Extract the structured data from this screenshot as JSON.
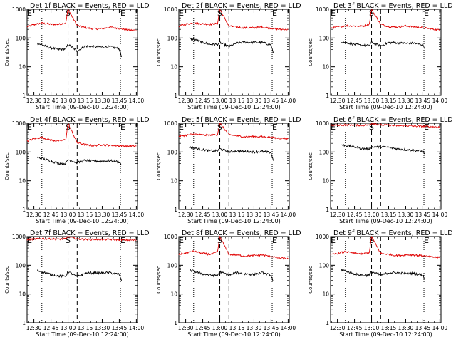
{
  "figure": {
    "colors": {
      "events": "#000000",
      "lld": "#e00000",
      "axes": "#000000"
    }
  },
  "chart_data": [
    {
      "type": "line",
      "title": "Det 1f BLACK = Events, RED = LLD",
      "xlabel": "Start Time (09-Dec-10 12:24:00)",
      "ylabel": "Counts/sec",
      "y_scale": "log",
      "ylim": [
        1,
        1000
      ],
      "yticks": [
        "1",
        "10",
        "100",
        "1000"
      ],
      "xlim": [
        "12:24",
        "14:01"
      ],
      "xticks": [
        "12:30",
        "12:45",
        "13:00",
        "13:15",
        "13:30",
        "13:45",
        "14:00"
      ],
      "markers": [
        {
          "label": "E",
          "time": "12:24"
        },
        {
          "label": "S",
          "time": "13:00"
        },
        {
          "label": "E",
          "time": "13:46"
        }
      ],
      "dotted_lines": [
        "12:37",
        "13:46"
      ],
      "dashed_lines": [
        "13:00",
        "13:08"
      ],
      "series": [
        {
          "key": "lld",
          "x": [
            "12:24",
            "12:30",
            "12:37",
            "12:45",
            "12:52",
            "12:58",
            "13:00",
            "13:08",
            "13:15",
            "13:22",
            "13:30",
            "13:37",
            "13:45",
            "13:52",
            "14:00"
          ],
          "y": [
            250,
            290,
            330,
            300,
            300,
            330,
            1000,
            270,
            230,
            210,
            210,
            240,
            215,
            190,
            185
          ]
        },
        {
          "key": "events",
          "x": [
            "12:33",
            "12:37",
            "12:45",
            "12:52",
            "12:58",
            "13:00",
            "13:08",
            "13:15",
            "13:22",
            "13:30",
            "13:37",
            "13:45",
            "13:47"
          ],
          "y": [
            65,
            58,
            45,
            40,
            42,
            60,
            35,
            52,
            50,
            48,
            50,
            42,
            22
          ]
        }
      ]
    },
    {
      "type": "line",
      "title": "Det 2f BLACK = Events, RED = LLD",
      "xlabel": "Start Time (09-Dec-10 12:24:00)",
      "ylabel": "Counts/sec",
      "y_scale": "log",
      "ylim": [
        1,
        1000
      ],
      "yticks": [
        "1",
        "10",
        "100",
        "1000"
      ],
      "xlim": [
        "12:24",
        "14:01"
      ],
      "xticks": [
        "12:30",
        "12:45",
        "13:00",
        "13:15",
        "13:30",
        "13:45",
        "14:00"
      ],
      "markers": [
        {
          "label": "E",
          "time": "12:24"
        },
        {
          "label": "S",
          "time": "13:00"
        },
        {
          "label": "E",
          "time": "13:46"
        }
      ],
      "dotted_lines": [
        "12:37",
        "13:46"
      ],
      "dashed_lines": [
        "13:00",
        "13:08"
      ],
      "series": [
        {
          "key": "lld",
          "x": [
            "12:24",
            "12:30",
            "12:37",
            "12:45",
            "12:52",
            "12:58",
            "13:00",
            "13:08",
            "13:15",
            "13:22",
            "13:30",
            "13:37",
            "13:45",
            "13:52",
            "14:00"
          ],
          "y": [
            260,
            300,
            330,
            310,
            300,
            320,
            1000,
            260,
            240,
            225,
            230,
            240,
            220,
            200,
            200
          ]
        },
        {
          "key": "events",
          "x": [
            "12:33",
            "12:37",
            "12:45",
            "12:52",
            "12:58",
            "13:00",
            "13:08",
            "13:15",
            "13:22",
            "13:30",
            "13:37",
            "13:45",
            "13:47"
          ],
          "y": [
            95,
            90,
            70,
            60,
            60,
            70,
            50,
            68,
            72,
            70,
            70,
            58,
            30
          ]
        }
      ]
    },
    {
      "type": "line",
      "title": "Det 3f BLACK = Events, RED = LLD",
      "xlabel": "Start Time (09-Dec-10 12:24:00)",
      "ylabel": "Counts/sec",
      "y_scale": "log",
      "ylim": [
        1,
        1000
      ],
      "yticks": [
        "1",
        "10",
        "100",
        "1000"
      ],
      "xlim": [
        "12:24",
        "14:01"
      ],
      "xticks": [
        "12:30",
        "12:45",
        "13:00",
        "13:15",
        "13:30",
        "13:45",
        "14:00"
      ],
      "markers": [
        {
          "label": "E",
          "time": "12:24"
        },
        {
          "label": "S",
          "time": "13:00"
        },
        {
          "label": "E",
          "time": "13:46"
        }
      ],
      "dotted_lines": [
        "12:37",
        "13:46"
      ],
      "dashed_lines": [
        "13:00",
        "13:08"
      ],
      "series": [
        {
          "key": "lld",
          "x": [
            "12:24",
            "12:30",
            "12:37",
            "12:45",
            "12:52",
            "12:58",
            "13:00",
            "13:08",
            "13:15",
            "13:22",
            "13:30",
            "13:37",
            "13:45",
            "13:52",
            "14:00"
          ],
          "y": [
            220,
            240,
            270,
            260,
            255,
            300,
            1000,
            300,
            250,
            240,
            260,
            245,
            230,
            205,
            190
          ]
        },
        {
          "key": "events",
          "x": [
            "12:33",
            "12:37",
            "12:45",
            "12:52",
            "12:58",
            "13:00",
            "13:08",
            "13:15",
            "13:22",
            "13:30",
            "13:37",
            "13:45",
            "13:47"
          ],
          "y": [
            75,
            70,
            60,
            55,
            55,
            70,
            52,
            70,
            68,
            65,
            66,
            58,
            45
          ]
        }
      ]
    },
    {
      "type": "line",
      "title": "Det 4f BLACK = Events, RED = LLD",
      "xlabel": "Start Time (09-Dec-10 12:24:00)",
      "ylabel": "Counts/sec",
      "y_scale": "log",
      "ylim": [
        1,
        1000
      ],
      "yticks": [
        "1",
        "10",
        "100",
        "1000"
      ],
      "xlim": [
        "12:24",
        "14:01"
      ],
      "xticks": [
        "12:30",
        "12:45",
        "13:00",
        "13:15",
        "13:30",
        "13:45",
        "14:00"
      ],
      "markers": [
        {
          "label": "E",
          "time": "12:24"
        },
        {
          "label": "S",
          "time": "13:00"
        },
        {
          "label": "E",
          "time": "13:46"
        }
      ],
      "dotted_lines": [
        "12:37",
        "13:46"
      ],
      "dashed_lines": [
        "13:00",
        "13:08"
      ],
      "series": [
        {
          "key": "lld",
          "x": [
            "12:24",
            "12:30",
            "12:37",
            "12:45",
            "12:52",
            "12:58",
            "13:00",
            "13:08",
            "13:15",
            "13:22",
            "13:30",
            "13:37",
            "13:45",
            "13:52",
            "14:00"
          ],
          "y": [
            240,
            290,
            320,
            260,
            240,
            270,
            1000,
            210,
            180,
            165,
            180,
            170,
            165,
            160,
            160
          ]
        },
        {
          "key": "events",
          "x": [
            "12:33",
            "12:37",
            "12:45",
            "12:52",
            "12:58",
            "13:00",
            "13:08",
            "13:15",
            "13:22",
            "13:30",
            "13:37",
            "13:45",
            "13:47"
          ],
          "y": [
            65,
            60,
            48,
            40,
            40,
            55,
            42,
            52,
            48,
            48,
            50,
            45,
            35
          ]
        }
      ]
    },
    {
      "type": "line",
      "title": "Det 5f BLACK = Events, RED = LLD",
      "xlabel": "Start Time (09-Dec-10 12:24:00)",
      "ylabel": "Counts/sec",
      "y_scale": "log",
      "ylim": [
        1,
        1000
      ],
      "yticks": [
        "1",
        "10",
        "100",
        "1000"
      ],
      "xlim": [
        "12:24",
        "14:01"
      ],
      "xticks": [
        "12:30",
        "12:45",
        "13:00",
        "13:15",
        "13:30",
        "13:45",
        "14:00"
      ],
      "markers": [
        {
          "label": "E",
          "time": "12:24"
        },
        {
          "label": "S",
          "time": "13:00"
        },
        {
          "label": "E",
          "time": "13:46"
        }
      ],
      "dotted_lines": [
        "12:37",
        "13:46"
      ],
      "dashed_lines": [
        "13:00",
        "13:08"
      ],
      "series": [
        {
          "key": "lld",
          "x": [
            "12:24",
            "12:30",
            "12:37",
            "12:45",
            "12:52",
            "12:58",
            "13:00",
            "13:08",
            "13:15",
            "13:22",
            "13:30",
            "13:37",
            "13:45",
            "13:52",
            "14:00"
          ],
          "y": [
            360,
            380,
            420,
            390,
            380,
            410,
            1000,
            400,
            360,
            340,
            350,
            340,
            320,
            300,
            290
          ]
        },
        {
          "key": "events",
          "x": [
            "12:33",
            "12:37",
            "12:45",
            "12:52",
            "12:58",
            "13:00",
            "13:08",
            "13:15",
            "13:22",
            "13:30",
            "13:37",
            "13:45",
            "13:47"
          ],
          "y": [
            150,
            140,
            120,
            110,
            110,
            130,
            100,
            110,
            105,
            100,
            105,
            95,
            50
          ]
        }
      ]
    },
    {
      "type": "line",
      "title": "Det 6f BLACK = Events, RED = LLD",
      "xlabel": "Start Time (09-Dec-10 12:24:00)",
      "ylabel": "Counts/sec",
      "y_scale": "log",
      "ylim": [
        1,
        1000
      ],
      "yticks": [
        "1",
        "10",
        "100",
        "1000"
      ],
      "xlim": [
        "12:24",
        "14:01"
      ],
      "xticks": [
        "12:30",
        "12:45",
        "13:00",
        "13:15",
        "13:30",
        "13:45",
        "14:00"
      ],
      "markers": [
        {
          "label": "E",
          "time": "12:24"
        },
        {
          "label": "S",
          "time": "13:00"
        },
        {
          "label": "E",
          "time": "13:46"
        }
      ],
      "dotted_lines": [
        "12:37",
        "13:46"
      ],
      "dashed_lines": [
        "13:00",
        "13:08"
      ],
      "series": [
        {
          "key": "lld",
          "x": [
            "12:24",
            "12:30",
            "12:37",
            "12:45",
            "12:52",
            "12:58",
            "13:00",
            "13:08",
            "13:15",
            "13:22",
            "13:30",
            "13:37",
            "13:45",
            "13:52",
            "14:00"
          ],
          "y": [
            850,
            860,
            880,
            860,
            850,
            870,
            1000,
            880,
            850,
            820,
            820,
            800,
            780,
            760,
            740
          ]
        },
        {
          "key": "events",
          "x": [
            "12:33",
            "12:37",
            "12:45",
            "12:52",
            "12:58",
            "13:00",
            "13:08",
            "13:15",
            "13:22",
            "13:30",
            "13:37",
            "13:45",
            "13:47"
          ],
          "y": [
            180,
            170,
            150,
            130,
            130,
            150,
            150,
            145,
            130,
            120,
            115,
            105,
            80
          ]
        }
      ]
    },
    {
      "type": "line",
      "title": "Det 7f BLACK = Events, RED = LLD",
      "xlabel": "Start Time (09-Dec-10 12:24:00)",
      "ylabel": "Counts/sec",
      "y_scale": "log",
      "ylim": [
        1,
        1000
      ],
      "yticks": [
        "1",
        "10",
        "100",
        "1000"
      ],
      "xlim": [
        "12:24",
        "14:01"
      ],
      "xticks": [
        "12:30",
        "12:45",
        "13:00",
        "13:15",
        "13:30",
        "13:45",
        "14:00"
      ],
      "markers": [
        {
          "label": "E",
          "time": "12:24"
        },
        {
          "label": "S",
          "time": "13:00"
        },
        {
          "label": "E",
          "time": "13:46"
        }
      ],
      "dotted_lines": [
        "12:37",
        "13:46"
      ],
      "dashed_lines": [
        "13:00",
        "13:08"
      ],
      "series": [
        {
          "key": "lld",
          "x": [
            "12:24",
            "12:30",
            "12:37",
            "12:45",
            "12:52",
            "12:58",
            "13:00",
            "13:08",
            "13:15",
            "13:22",
            "13:30",
            "13:37",
            "13:45",
            "13:52",
            "14:00"
          ],
          "y": [
            780,
            820,
            850,
            830,
            810,
            840,
            1000,
            830,
            800,
            790,
            800,
            790,
            780,
            760,
            750
          ]
        },
        {
          "key": "events",
          "x": [
            "12:33",
            "12:37",
            "12:45",
            "12:52",
            "12:58",
            "13:00",
            "13:08",
            "13:15",
            "13:22",
            "13:30",
            "13:37",
            "13:45",
            "13:47"
          ],
          "y": [
            65,
            60,
            48,
            42,
            42,
            60,
            40,
            52,
            55,
            55,
            55,
            48,
            28
          ]
        }
      ]
    },
    {
      "type": "line",
      "title": "Det 8f BLACK = Events, RED = LLD",
      "xlabel": "Start Time (09-Dec-10 12:24:00)",
      "ylabel": "Counts/sec",
      "y_scale": "log",
      "ylim": [
        1,
        1000
      ],
      "yticks": [
        "1",
        "10",
        "100",
        "1000"
      ],
      "xlim": [
        "12:24",
        "14:01"
      ],
      "xticks": [
        "12:30",
        "12:45",
        "13:00",
        "13:15",
        "13:30",
        "13:45",
        "14:00"
      ],
      "markers": [
        {
          "label": "E",
          "time": "12:24"
        },
        {
          "label": "S",
          "time": "13:00"
        },
        {
          "label": "E",
          "time": "13:46"
        }
      ],
      "dotted_lines": [
        "12:37",
        "13:46"
      ],
      "dashed_lines": [
        "13:00",
        "13:08"
      ],
      "series": [
        {
          "key": "lld",
          "x": [
            "12:24",
            "12:30",
            "12:37",
            "12:45",
            "12:52",
            "12:58",
            "13:00",
            "13:08",
            "13:15",
            "13:22",
            "13:30",
            "13:37",
            "13:45",
            "13:52",
            "14:00"
          ],
          "y": [
            240,
            270,
            310,
            260,
            240,
            290,
            1000,
            240,
            230,
            210,
            220,
            230,
            205,
            180,
            170
          ]
        },
        {
          "key": "events",
          "x": [
            "12:33",
            "12:37",
            "12:45",
            "12:52",
            "12:58",
            "13:00",
            "13:08",
            "13:15",
            "13:22",
            "13:30",
            "13:37",
            "13:45",
            "13:47"
          ],
          "y": [
            70,
            62,
            50,
            45,
            45,
            60,
            45,
            55,
            50,
            48,
            55,
            45,
            28
          ]
        }
      ]
    },
    {
      "type": "line",
      "title": "Det 9f BLACK = Events, RED = LLD",
      "xlabel": "Start Time (09-Dec-10 12:24:00)",
      "ylabel": "Counts/sec",
      "y_scale": "log",
      "ylim": [
        1,
        1000
      ],
      "yticks": [
        "1",
        "10",
        "100",
        "1000"
      ],
      "xlim": [
        "12:24",
        "14:01"
      ],
      "xticks": [
        "12:30",
        "12:45",
        "13:00",
        "13:15",
        "13:30",
        "13:45",
        "14:00"
      ],
      "markers": [
        {
          "label": "E",
          "time": "12:24"
        },
        {
          "label": "S",
          "time": "13:00"
        },
        {
          "label": "E",
          "time": "13:46"
        }
      ],
      "dotted_lines": [
        "12:37",
        "13:46"
      ],
      "dashed_lines": [
        "13:00",
        "13:08"
      ],
      "series": [
        {
          "key": "lld",
          "x": [
            "12:24",
            "12:30",
            "12:37",
            "12:45",
            "12:52",
            "12:58",
            "13:00",
            "13:08",
            "13:15",
            "13:22",
            "13:30",
            "13:37",
            "13:45",
            "13:52",
            "14:00"
          ],
          "y": [
            230,
            260,
            300,
            260,
            250,
            280,
            1000,
            260,
            240,
            220,
            230,
            230,
            215,
            195,
            185
          ]
        },
        {
          "key": "events",
          "x": [
            "12:33",
            "12:37",
            "12:45",
            "12:52",
            "12:58",
            "13:00",
            "13:08",
            "13:15",
            "13:22",
            "13:30",
            "13:37",
            "13:45",
            "13:47"
          ],
          "y": [
            70,
            65,
            50,
            45,
            45,
            60,
            45,
            55,
            55,
            52,
            52,
            45,
            32
          ]
        }
      ]
    }
  ]
}
